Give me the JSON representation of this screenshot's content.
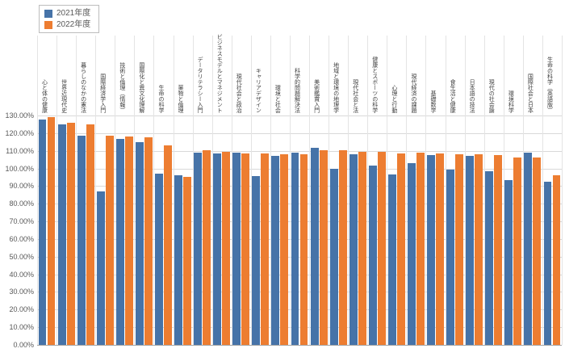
{
  "chart_data": {
    "type": "bar",
    "title": "",
    "xlabel": "",
    "ylabel": "",
    "legend_position": "top-left",
    "grid": true,
    "y_axis": {
      "min": 0,
      "max": 130,
      "step": 10,
      "tick_decimals": 2,
      "tick_suffix": "%"
    },
    "categories": [
      "心と体の健康",
      "世界近現代史",
      "暮らしのなかの憲法",
      "国際経済学入門",
      "技術と倫理（情報）",
      "国際化と異文化理解",
      "生命の科学",
      "薬物と倫理",
      "データリテラシー入門",
      "ビジネスモデルとマネジメント",
      "現代社会と政治",
      "キャリアデザイン",
      "環境と社会",
      "科学的問題解決法",
      "美術鑑賞入門",
      "地域と環境の地理学",
      "現代社会と法",
      "健康とスポーツの科学",
      "心理と行動",
      "現代経済の課題",
      "基礎数学",
      "食生活と健康",
      "日本語の技法",
      "現代の社会論",
      "環境科学",
      "国際社会と日本",
      "生命の科学（英語版）"
    ],
    "series": [
      {
        "name": "2021年度",
        "color": "#4673A8",
        "values": [
          127.5,
          125.0,
          118.5,
          87.0,
          116.5,
          115.0,
          97.0,
          96.0,
          109.0,
          108.5,
          109.0,
          95.5,
          107.0,
          109.0,
          111.5,
          100.0,
          108.0,
          101.5,
          96.5,
          103.0,
          107.5,
          99.5,
          107.0,
          98.5,
          93.5,
          109.0,
          92.5
        ]
      },
      {
        "name": "2022年度",
        "color": "#ED7D31",
        "values": [
          129.0,
          126.0,
          125.0,
          118.5,
          118.0,
          117.5,
          113.0,
          95.0,
          110.5,
          109.5,
          108.5,
          108.5,
          108.0,
          108.0,
          110.5,
          110.5,
          109.5,
          109.5,
          108.5,
          109.0,
          108.5,
          108.0,
          108.0,
          107.5,
          106.0,
          106.0,
          96.0
        ]
      }
    ]
  },
  "colors": {
    "h_grid": "#d9d9d9",
    "v_grid": "#e4e4e4",
    "axis": "#a6a6a6",
    "tick_text": "#595959",
    "label_text": "#404040",
    "background": "#ffffff"
  }
}
